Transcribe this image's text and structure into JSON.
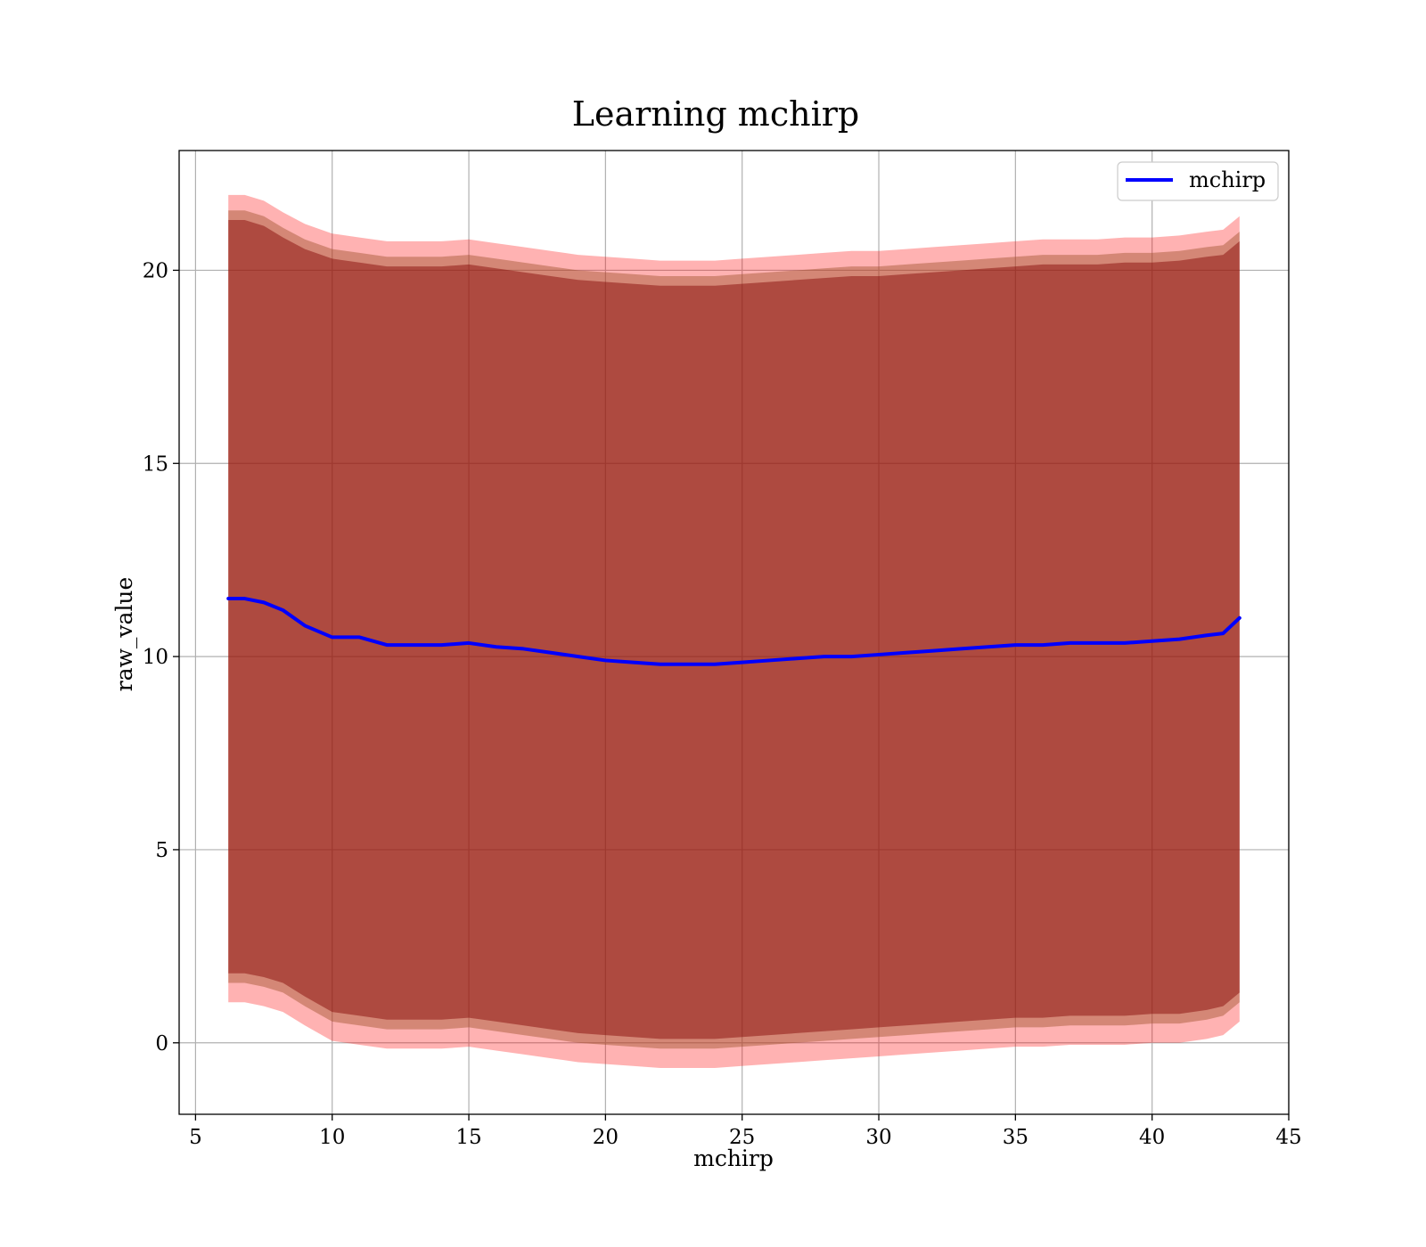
{
  "chart_data": {
    "type": "line",
    "title": "Learning mchirp",
    "xlabel": "mchirp",
    "ylabel": "raw_value",
    "xlim": [
      4.4,
      45.0
    ],
    "ylim": [
      -1.85,
      23.1
    ],
    "xticks": [
      5,
      10,
      15,
      20,
      25,
      30,
      35,
      40,
      45
    ],
    "yticks": [
      0,
      5,
      10,
      15,
      20
    ],
    "grid": true,
    "legend": {
      "placement": "top-right",
      "entries": [
        "mchirp"
      ]
    },
    "colors": {
      "line": "#0000ff",
      "outer_band": "#ff0000",
      "middle_band": "#a0522d",
      "inner_band": "#800000"
    },
    "series": [
      {
        "name": "mchirp",
        "x": [
          6.2,
          6.8,
          7.5,
          8.2,
          9.0,
          10.0,
          11.0,
          12.0,
          13.0,
          14.0,
          15.0,
          16.0,
          17.0,
          18.0,
          19.0,
          20.0,
          21.0,
          22.0,
          23.0,
          24.0,
          25.0,
          26.0,
          27.0,
          28.0,
          29.0,
          30.0,
          31.0,
          32.0,
          33.0,
          34.0,
          35.0,
          36.0,
          37.0,
          38.0,
          39.0,
          40.0,
          41.0,
          42.0,
          42.6,
          43.2
        ],
        "y": [
          11.5,
          11.5,
          11.4,
          11.2,
          10.8,
          10.5,
          10.5,
          10.3,
          10.3,
          10.3,
          10.35,
          10.25,
          10.2,
          10.1,
          10.0,
          9.9,
          9.85,
          9.8,
          9.8,
          9.8,
          9.85,
          9.9,
          9.95,
          10.0,
          10.0,
          10.05,
          10.1,
          10.15,
          10.2,
          10.25,
          10.3,
          10.3,
          10.35,
          10.35,
          10.35,
          10.4,
          10.45,
          10.55,
          10.6,
          11.0
        ]
      }
    ],
    "bands": [
      {
        "level": "outer",
        "x": [
          6.2,
          6.8,
          7.5,
          8.2,
          9.0,
          10.0,
          11.0,
          12.0,
          13.0,
          14.0,
          15.0,
          16.0,
          17.0,
          18.0,
          19.0,
          20.0,
          21.0,
          22.0,
          23.0,
          24.0,
          25.0,
          26.0,
          27.0,
          28.0,
          29.0,
          30.0,
          31.0,
          32.0,
          33.0,
          34.0,
          35.0,
          36.0,
          37.0,
          38.0,
          39.0,
          40.0,
          41.0,
          42.0,
          42.6,
          43.2
        ],
        "upper": [
          21.95,
          21.95,
          21.8,
          21.5,
          21.2,
          20.95,
          20.85,
          20.75,
          20.75,
          20.75,
          20.8,
          20.7,
          20.6,
          20.5,
          20.4,
          20.35,
          20.3,
          20.25,
          20.25,
          20.25,
          20.3,
          20.35,
          20.4,
          20.45,
          20.5,
          20.5,
          20.55,
          20.6,
          20.65,
          20.7,
          20.75,
          20.8,
          20.8,
          20.8,
          20.85,
          20.85,
          20.9,
          21.0,
          21.05,
          21.4
        ],
        "lower": [
          1.05,
          1.05,
          0.95,
          0.8,
          0.45,
          0.05,
          -0.05,
          -0.15,
          -0.15,
          -0.15,
          -0.1,
          -0.2,
          -0.3,
          -0.4,
          -0.5,
          -0.55,
          -0.6,
          -0.65,
          -0.65,
          -0.65,
          -0.6,
          -0.55,
          -0.5,
          -0.45,
          -0.4,
          -0.35,
          -0.3,
          -0.25,
          -0.2,
          -0.15,
          -0.1,
          -0.1,
          -0.05,
          -0.05,
          -0.05,
          0.0,
          0.0,
          0.1,
          0.2,
          0.55
        ]
      },
      {
        "level": "middle",
        "x": [
          6.2,
          6.8,
          7.5,
          8.2,
          9.0,
          10.0,
          11.0,
          12.0,
          13.0,
          14.0,
          15.0,
          16.0,
          17.0,
          18.0,
          19.0,
          20.0,
          21.0,
          22.0,
          23.0,
          24.0,
          25.0,
          26.0,
          27.0,
          28.0,
          29.0,
          30.0,
          31.0,
          32.0,
          33.0,
          34.0,
          35.0,
          36.0,
          37.0,
          38.0,
          39.0,
          40.0,
          41.0,
          42.0,
          42.6,
          43.2
        ],
        "upper": [
          21.55,
          21.55,
          21.4,
          21.1,
          20.8,
          20.55,
          20.45,
          20.35,
          20.35,
          20.35,
          20.4,
          20.3,
          20.2,
          20.1,
          20.0,
          19.95,
          19.9,
          19.85,
          19.85,
          19.85,
          19.9,
          19.95,
          20.0,
          20.05,
          20.1,
          20.1,
          20.15,
          20.2,
          20.25,
          20.3,
          20.35,
          20.4,
          20.4,
          20.4,
          20.45,
          20.45,
          20.5,
          20.6,
          20.65,
          21.0
        ],
        "lower": [
          1.55,
          1.55,
          1.45,
          1.3,
          0.95,
          0.55,
          0.45,
          0.35,
          0.35,
          0.35,
          0.4,
          0.3,
          0.2,
          0.1,
          0.0,
          -0.05,
          -0.1,
          -0.15,
          -0.15,
          -0.15,
          -0.1,
          -0.05,
          0.0,
          0.05,
          0.1,
          0.15,
          0.2,
          0.25,
          0.3,
          0.35,
          0.4,
          0.4,
          0.45,
          0.45,
          0.45,
          0.5,
          0.5,
          0.6,
          0.7,
          1.05
        ]
      },
      {
        "level": "inner",
        "x": [
          6.2,
          6.8,
          7.5,
          8.2,
          9.0,
          10.0,
          11.0,
          12.0,
          13.0,
          14.0,
          15.0,
          16.0,
          17.0,
          18.0,
          19.0,
          20.0,
          21.0,
          22.0,
          23.0,
          24.0,
          25.0,
          26.0,
          27.0,
          28.0,
          29.0,
          30.0,
          31.0,
          32.0,
          33.0,
          34.0,
          35.0,
          36.0,
          37.0,
          38.0,
          39.0,
          40.0,
          41.0,
          42.0,
          42.6,
          43.2
        ],
        "upper": [
          21.3,
          21.3,
          21.15,
          20.85,
          20.55,
          20.3,
          20.2,
          20.1,
          20.1,
          20.1,
          20.15,
          20.05,
          19.95,
          19.85,
          19.75,
          19.7,
          19.65,
          19.6,
          19.6,
          19.6,
          19.65,
          19.7,
          19.75,
          19.8,
          19.85,
          19.85,
          19.9,
          19.95,
          20.0,
          20.05,
          20.1,
          20.15,
          20.15,
          20.15,
          20.2,
          20.2,
          20.25,
          20.35,
          20.4,
          20.75
        ],
        "lower": [
          1.8,
          1.8,
          1.7,
          1.55,
          1.2,
          0.8,
          0.7,
          0.6,
          0.6,
          0.6,
          0.65,
          0.55,
          0.45,
          0.35,
          0.25,
          0.2,
          0.15,
          0.1,
          0.1,
          0.1,
          0.15,
          0.2,
          0.25,
          0.3,
          0.35,
          0.4,
          0.45,
          0.5,
          0.55,
          0.6,
          0.65,
          0.65,
          0.7,
          0.7,
          0.7,
          0.75,
          0.75,
          0.85,
          0.95,
          1.3
        ]
      }
    ]
  }
}
